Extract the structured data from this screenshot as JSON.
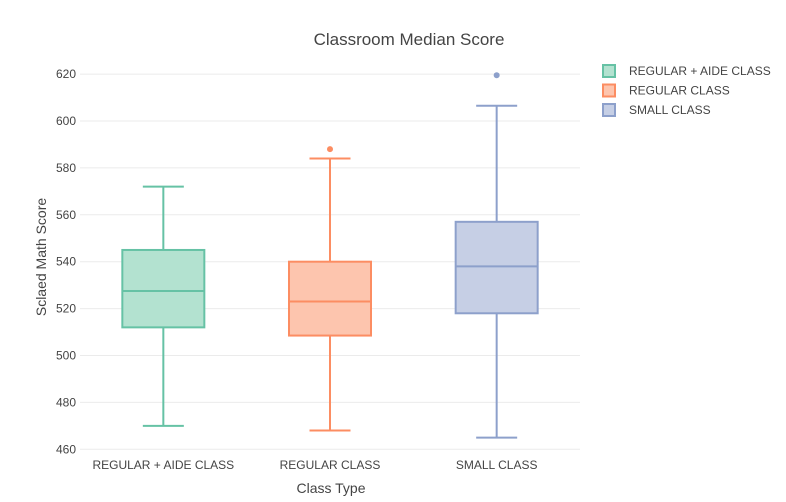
{
  "chart_data": {
    "type": "box",
    "title": "Classroom Median Score",
    "xlabel": "Class Type",
    "ylabel": "Sclaed Math Score",
    "ylim": [
      458,
      626
    ],
    "yticks": [
      460,
      480,
      500,
      520,
      540,
      560,
      580,
      600,
      620
    ],
    "grid": true,
    "legend_position": "top-right",
    "categories": [
      "REGULAR + AIDE CLASS",
      "REGULAR CLASS",
      "SMALL CLASS"
    ],
    "series": [
      {
        "name": "REGULAR + AIDE CLASS",
        "color": "#66c2a5",
        "fill": "#b3e2d0",
        "min": 470,
        "q1": 512,
        "median": 527.5,
        "q3": 545,
        "max": 572,
        "outliers": []
      },
      {
        "name": "REGULAR CLASS",
        "color": "#fc8d62",
        "fill": "#fdc5ae",
        "min": 468,
        "q1": 508.5,
        "median": 523,
        "q3": 540,
        "max": 584,
        "outliers": [
          588
        ]
      },
      {
        "name": "SMALL CLASS",
        "color": "#8da0cb",
        "fill": "#c6cfe5",
        "min": 465,
        "q1": 518,
        "median": 538,
        "q3": 557,
        "max": 606.5,
        "outliers": [
          619.5
        ]
      }
    ]
  }
}
